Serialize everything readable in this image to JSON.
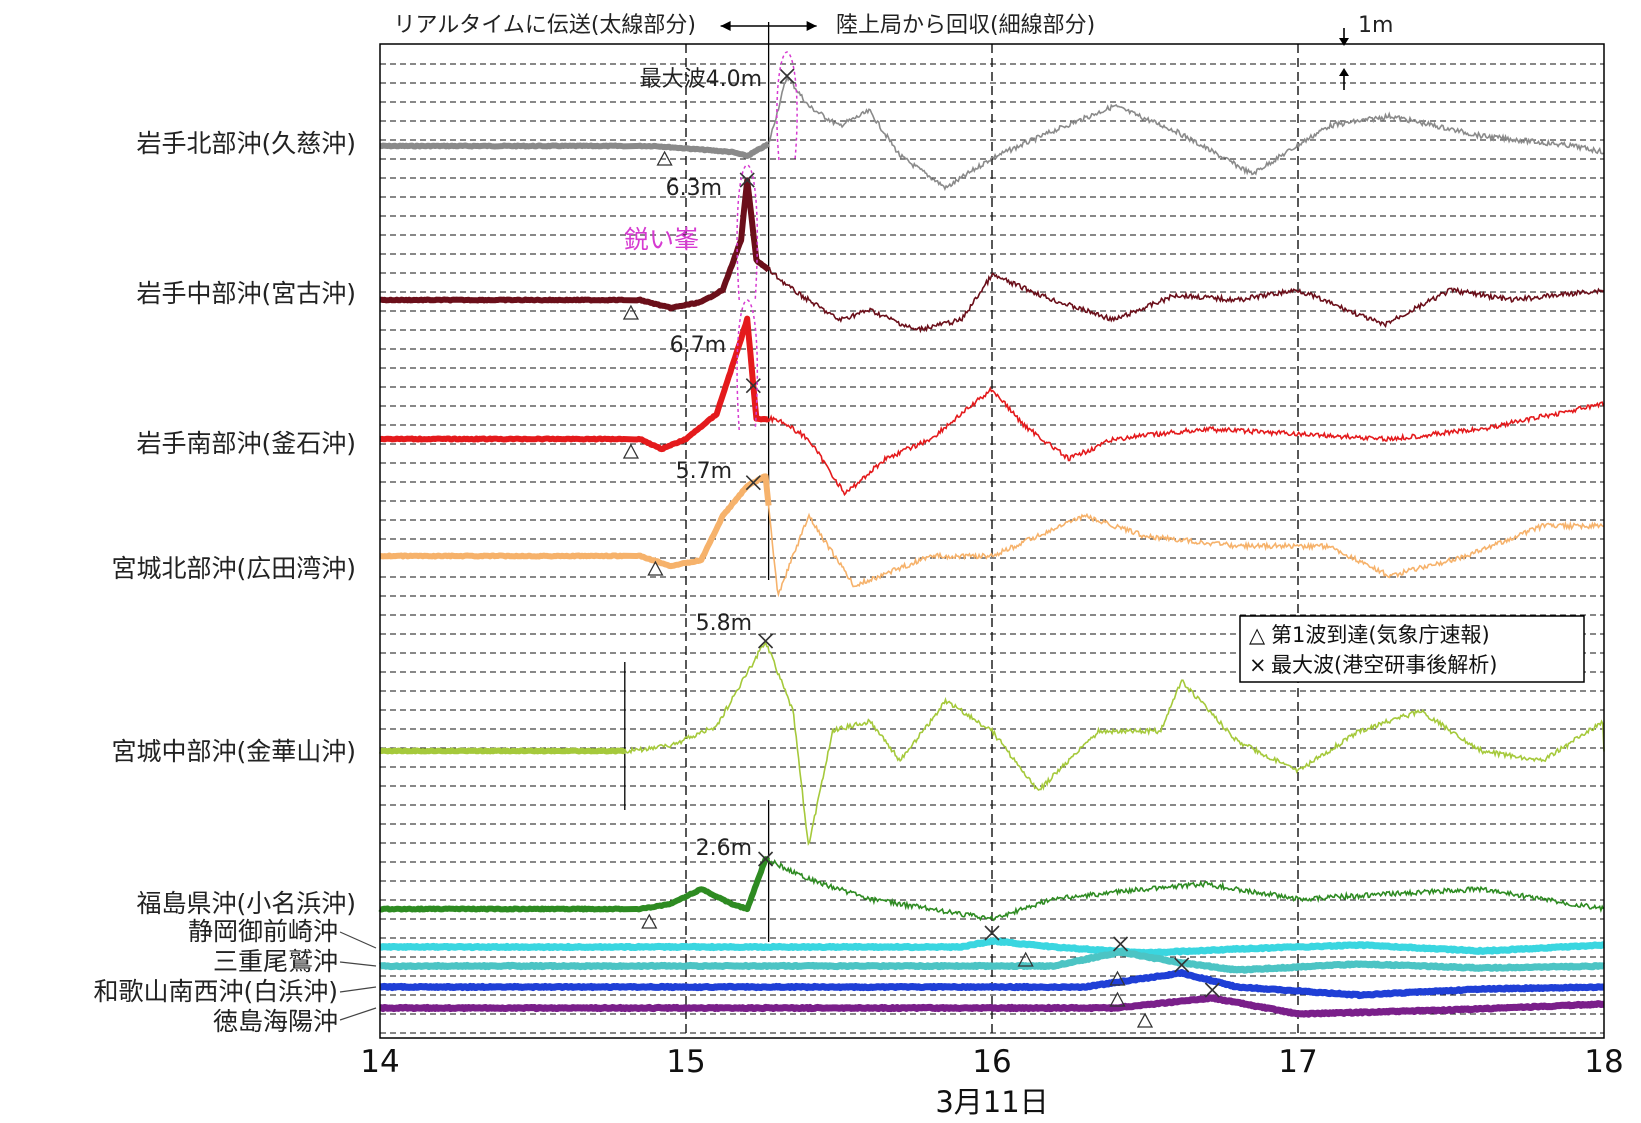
{
  "chart_data": {
    "type": "line",
    "xlabel": "3月11日",
    "xlim": [
      14,
      18
    ],
    "x_ticks": [
      "14",
      "15",
      "16",
      "17",
      "18"
    ],
    "dashed_gridlines": true,
    "legend_placement": "right",
    "legend": [
      {
        "marker": "△",
        "text": "第1波到達(気象庁速報)"
      },
      {
        "marker": "×",
        "text": "最大波(港空研事後解析)"
      }
    ],
    "scale_bar": "1m",
    "annotations": {
      "realtime": "リアルタイムに伝送(太線部分)",
      "recovered": "陸上局から回収(細線部分)",
      "switch_time": 15.27,
      "sharp_peak": "鋭い峯"
    },
    "series": [
      {
        "name": "岩手北部沖(久慈沖)",
        "color": "#8a8a8a",
        "max_wave": "最大波4.0m",
        "first_arrival": 14.93,
        "max_time": 15.33
      },
      {
        "name": "岩手中部沖(宮古沖)",
        "color": "#6b0f1a",
        "max_wave": "6.3m",
        "first_arrival": 14.82,
        "max_time": 15.2
      },
      {
        "name": "岩手南部沖(釜石沖)",
        "color": "#e41a1c",
        "max_wave": "6.7m",
        "first_arrival": 14.82,
        "max_time": 15.22
      },
      {
        "name": "宮城北部沖(広田湾沖)",
        "color": "#f6b26b",
        "max_wave": "5.7m",
        "first_arrival": 14.9,
        "max_time": 15.22
      },
      {
        "name": "宮城中部沖(金華山沖)",
        "color": "#a5c93b",
        "max_wave": "5.8m",
        "first_arrival": null,
        "max_time": 15.26
      },
      {
        "name": "福島県沖(小名浜沖)",
        "color": "#2e8b22",
        "max_wave": "2.6m",
        "first_arrival": 14.88,
        "max_time": 15.26
      },
      {
        "name": "静岡御前崎沖",
        "color": "#3ad6e0",
        "max_wave": "",
        "first_arrival": 16.11,
        "max_time": 16.0
      },
      {
        "name": "三重尾鷲沖",
        "color": "#4cc4c4",
        "max_wave": "",
        "first_arrival": 16.41,
        "max_time": 16.42
      },
      {
        "name": "和歌山南西沖(白浜沖)",
        "color": "#1f3fd6",
        "max_wave": "",
        "first_arrival": 16.41,
        "max_time": 16.62
      },
      {
        "name": "徳島海陽沖",
        "color": "#7a1f8a",
        "max_wave": "",
        "first_arrival": 16.5,
        "max_time": 16.72
      }
    ]
  }
}
